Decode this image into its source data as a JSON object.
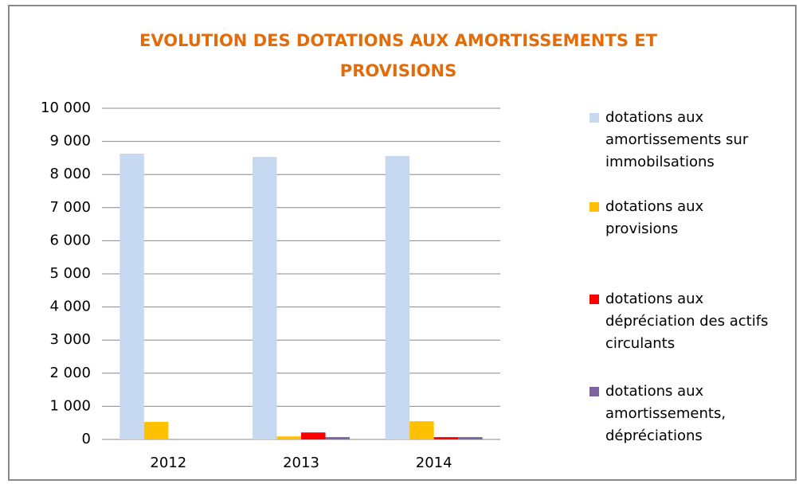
{
  "chart_data": {
    "type": "bar",
    "title": "EVOLUTION DES DOTATIONS AUX AMORTISSEMENTS ET PROVISIONS",
    "categories": [
      "2012",
      "2013",
      "2014"
    ],
    "series": [
      {
        "name": "dotations aux amortissements sur immobilsations",
        "color": "#c6d9f1",
        "values": [
          8630,
          8530,
          8560
        ]
      },
      {
        "name": "dotations aux provisions",
        "color": "#ffc000",
        "values": [
          530,
          90,
          550
        ]
      },
      {
        "name": "dotations aux dépréciation des actifs circulants",
        "color": "#ff0000",
        "values": [
          0,
          210,
          70
        ]
      },
      {
        "name": "dotations aux amortissements, dépréciations",
        "color": "#8064a2",
        "values": [
          0,
          70,
          70
        ]
      }
    ],
    "ylim": [
      0,
      10000
    ],
    "yticks": [
      0,
      {
        "value": 1000,
        "label": "1 000"
      },
      {
        "value": 2000,
        "label": "2 000"
      },
      {
        "value": 3000,
        "label": "3 000"
      },
      {
        "value": 4000,
        "label": "4 000"
      },
      {
        "value": 5000,
        "label": "5 000"
      },
      {
        "value": 6000,
        "label": "6 000"
      },
      {
        "value": 7000,
        "label": "7 000"
      },
      {
        "value": 8000,
        "label": "8 000"
      },
      {
        "value": 9000,
        "label": "9 000"
      },
      {
        "value": 10000,
        "label": "10 000"
      }
    ],
    "grid": true,
    "legend": "right"
  }
}
